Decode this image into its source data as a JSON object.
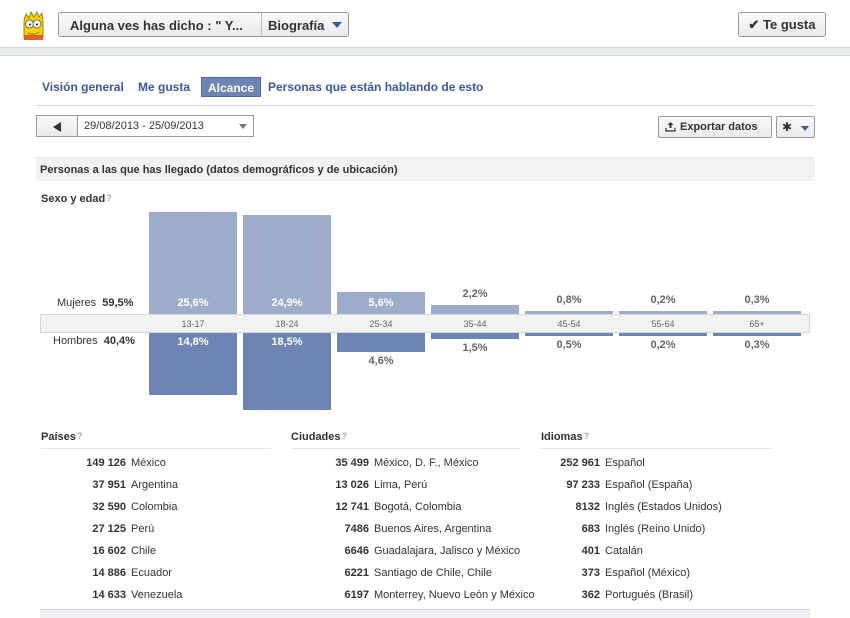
{
  "topbar": {
    "page_name": "Alguna ves has dicho : \" Y...",
    "section": "Biografía",
    "like_label": "✔ Te gusta"
  },
  "tabs": [
    "Visión general",
    "Me gusta",
    "Alcance",
    "Personas que están hablando de esto"
  ],
  "active_tab": "Alcance",
  "date_range": "29/08/2013 - 25/09/2013",
  "toolbar": {
    "export_label": "Exportar datos"
  },
  "section_title": "Personas a las que has llegado (datos demográficos y de ubicación)",
  "demographics": {
    "title": "Sexo y edad",
    "help": "?",
    "women_label": "Mujeres",
    "women_total": "59,5%",
    "men_label": "Hombres",
    "men_total": "40,4%",
    "groups": [
      {
        "age": "13-17",
        "women": 25.6,
        "women_label": "25,6%",
        "men": 14.8,
        "men_label": "14,8%"
      },
      {
        "age": "18-24",
        "women": 24.9,
        "women_label": "24,9%",
        "men": 18.5,
        "men_label": "18,5%"
      },
      {
        "age": "25-34",
        "women": 5.6,
        "women_label": "5,6%",
        "men": 4.6,
        "men_label": "4,6%"
      },
      {
        "age": "35-44",
        "women": 2.2,
        "women_label": "2,2%",
        "men": 1.5,
        "men_label": "1,5%"
      },
      {
        "age": "45-54",
        "women": 0.8,
        "women_label": "0,8%",
        "men": 0.5,
        "men_label": "0,5%"
      },
      {
        "age": "55-64",
        "women": 0.2,
        "women_label": "0,2%",
        "men": 0.2,
        "men_label": "0,2%"
      },
      {
        "age": "65+",
        "women": 0.3,
        "women_label": "0,3%",
        "men": 0.3,
        "men_label": "0,3%"
      }
    ],
    "colors": {
      "women": "#9daccb",
      "men": "#6d84b4"
    }
  },
  "lists": [
    {
      "title": "Países",
      "help": "?",
      "items": [
        {
          "count": "149 126",
          "name": "México"
        },
        {
          "count": "37 951",
          "name": "Argentina"
        },
        {
          "count": "32 590",
          "name": "Colombia"
        },
        {
          "count": "27 125",
          "name": "Perú"
        },
        {
          "count": "16 602",
          "name": "Chile"
        },
        {
          "count": "14 886",
          "name": "Ecuador"
        },
        {
          "count": "14 633",
          "name": "Venezuela"
        }
      ]
    },
    {
      "title": "Ciudades",
      "help": "?",
      "items": [
        {
          "count": "35 499",
          "name": "México, D. F., México"
        },
        {
          "count": "13 026",
          "name": "Lima, Perú"
        },
        {
          "count": "12 741",
          "name": "Bogotá, Colombia"
        },
        {
          "count": "7486",
          "name": "Buenos Aires, Argentina"
        },
        {
          "count": "6646",
          "name": "Guadalajara, Jalisco y México"
        },
        {
          "count": "6221",
          "name": "Santiago de Chile, Chile"
        },
        {
          "count": "6197",
          "name": "Monterrey, Nuevo León y México"
        }
      ]
    },
    {
      "title": "Idiomas",
      "help": "?",
      "items": [
        {
          "count": "252 961",
          "name": "Español"
        },
        {
          "count": "97 233",
          "name": "Español (España)"
        },
        {
          "count": "8132",
          "name": "Inglés (Estados Unidos)"
        },
        {
          "count": "683",
          "name": "Inglés (Reino Unido)"
        },
        {
          "count": "401",
          "name": "Catalán"
        },
        {
          "count": "373",
          "name": "Español (México)"
        },
        {
          "count": "362",
          "name": "Portugués (Brasil)"
        }
      ]
    }
  ],
  "icons": {
    "avatar": "cartoon-avatar",
    "export": "upload-icon",
    "gear": "gear-icon"
  }
}
